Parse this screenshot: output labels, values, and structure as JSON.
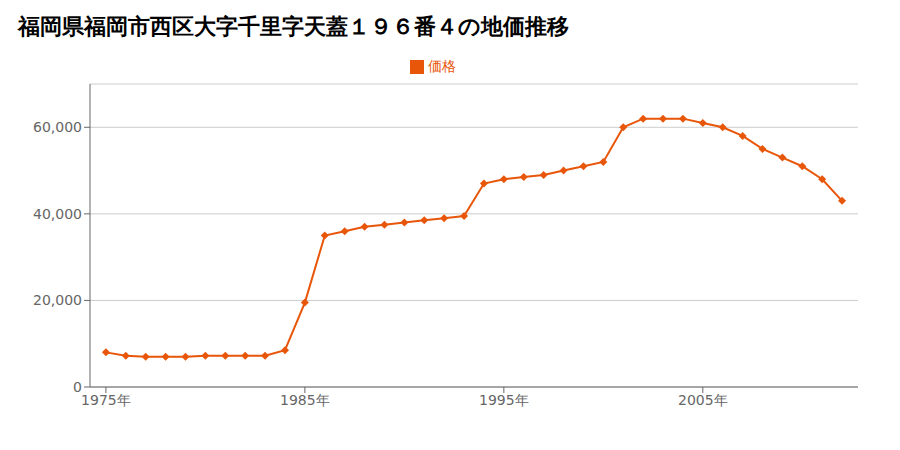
{
  "chart_data": {
    "type": "line",
    "title": "福岡県福岡市西区大字千里字天蓋１９６番４の地価推移",
    "x": [
      1975,
      1976,
      1977,
      1978,
      1979,
      1980,
      1981,
      1982,
      1983,
      1984,
      1985,
      1986,
      1987,
      1988,
      1989,
      1990,
      1991,
      1992,
      1993,
      1994,
      1995,
      1996,
      1997,
      1998,
      1999,
      2000,
      2001,
      2002,
      2003,
      2004,
      2005,
      2006,
      2007,
      2008,
      2009,
      2010,
      2011,
      2012
    ],
    "series": [
      {
        "name": "価格",
        "color": "#e8560a",
        "marker": "diamond",
        "values": [
          8000,
          7200,
          7000,
          7000,
          7000,
          7200,
          7200,
          7200,
          7200,
          8500,
          19500,
          35000,
          36000,
          37000,
          37500,
          38000,
          38500,
          39000,
          39500,
          47000,
          48000,
          48500,
          49000,
          50000,
          51000,
          52000,
          60000,
          62000,
          62000,
          62000,
          61000,
          60000,
          58000,
          55000,
          53000,
          51000,
          48000,
          43000
        ]
      }
    ],
    "xlim": [
      1974.2,
      2012.8
    ],
    "xticks": [
      {
        "value": 1975,
        "label": "1975年"
      },
      {
        "value": 1985,
        "label": "1985年"
      },
      {
        "value": 1995,
        "label": "1995年"
      },
      {
        "value": 2005,
        "label": "2005年"
      }
    ],
    "ylim": [
      0,
      70000
    ],
    "yticks": [
      0,
      {
        "value": 20000,
        "label": "20,000"
      },
      {
        "value": 40000,
        "label": "40,000"
      },
      {
        "value": 60000,
        "label": "60,000"
      }
    ],
    "grid": "y",
    "legend": "top"
  }
}
